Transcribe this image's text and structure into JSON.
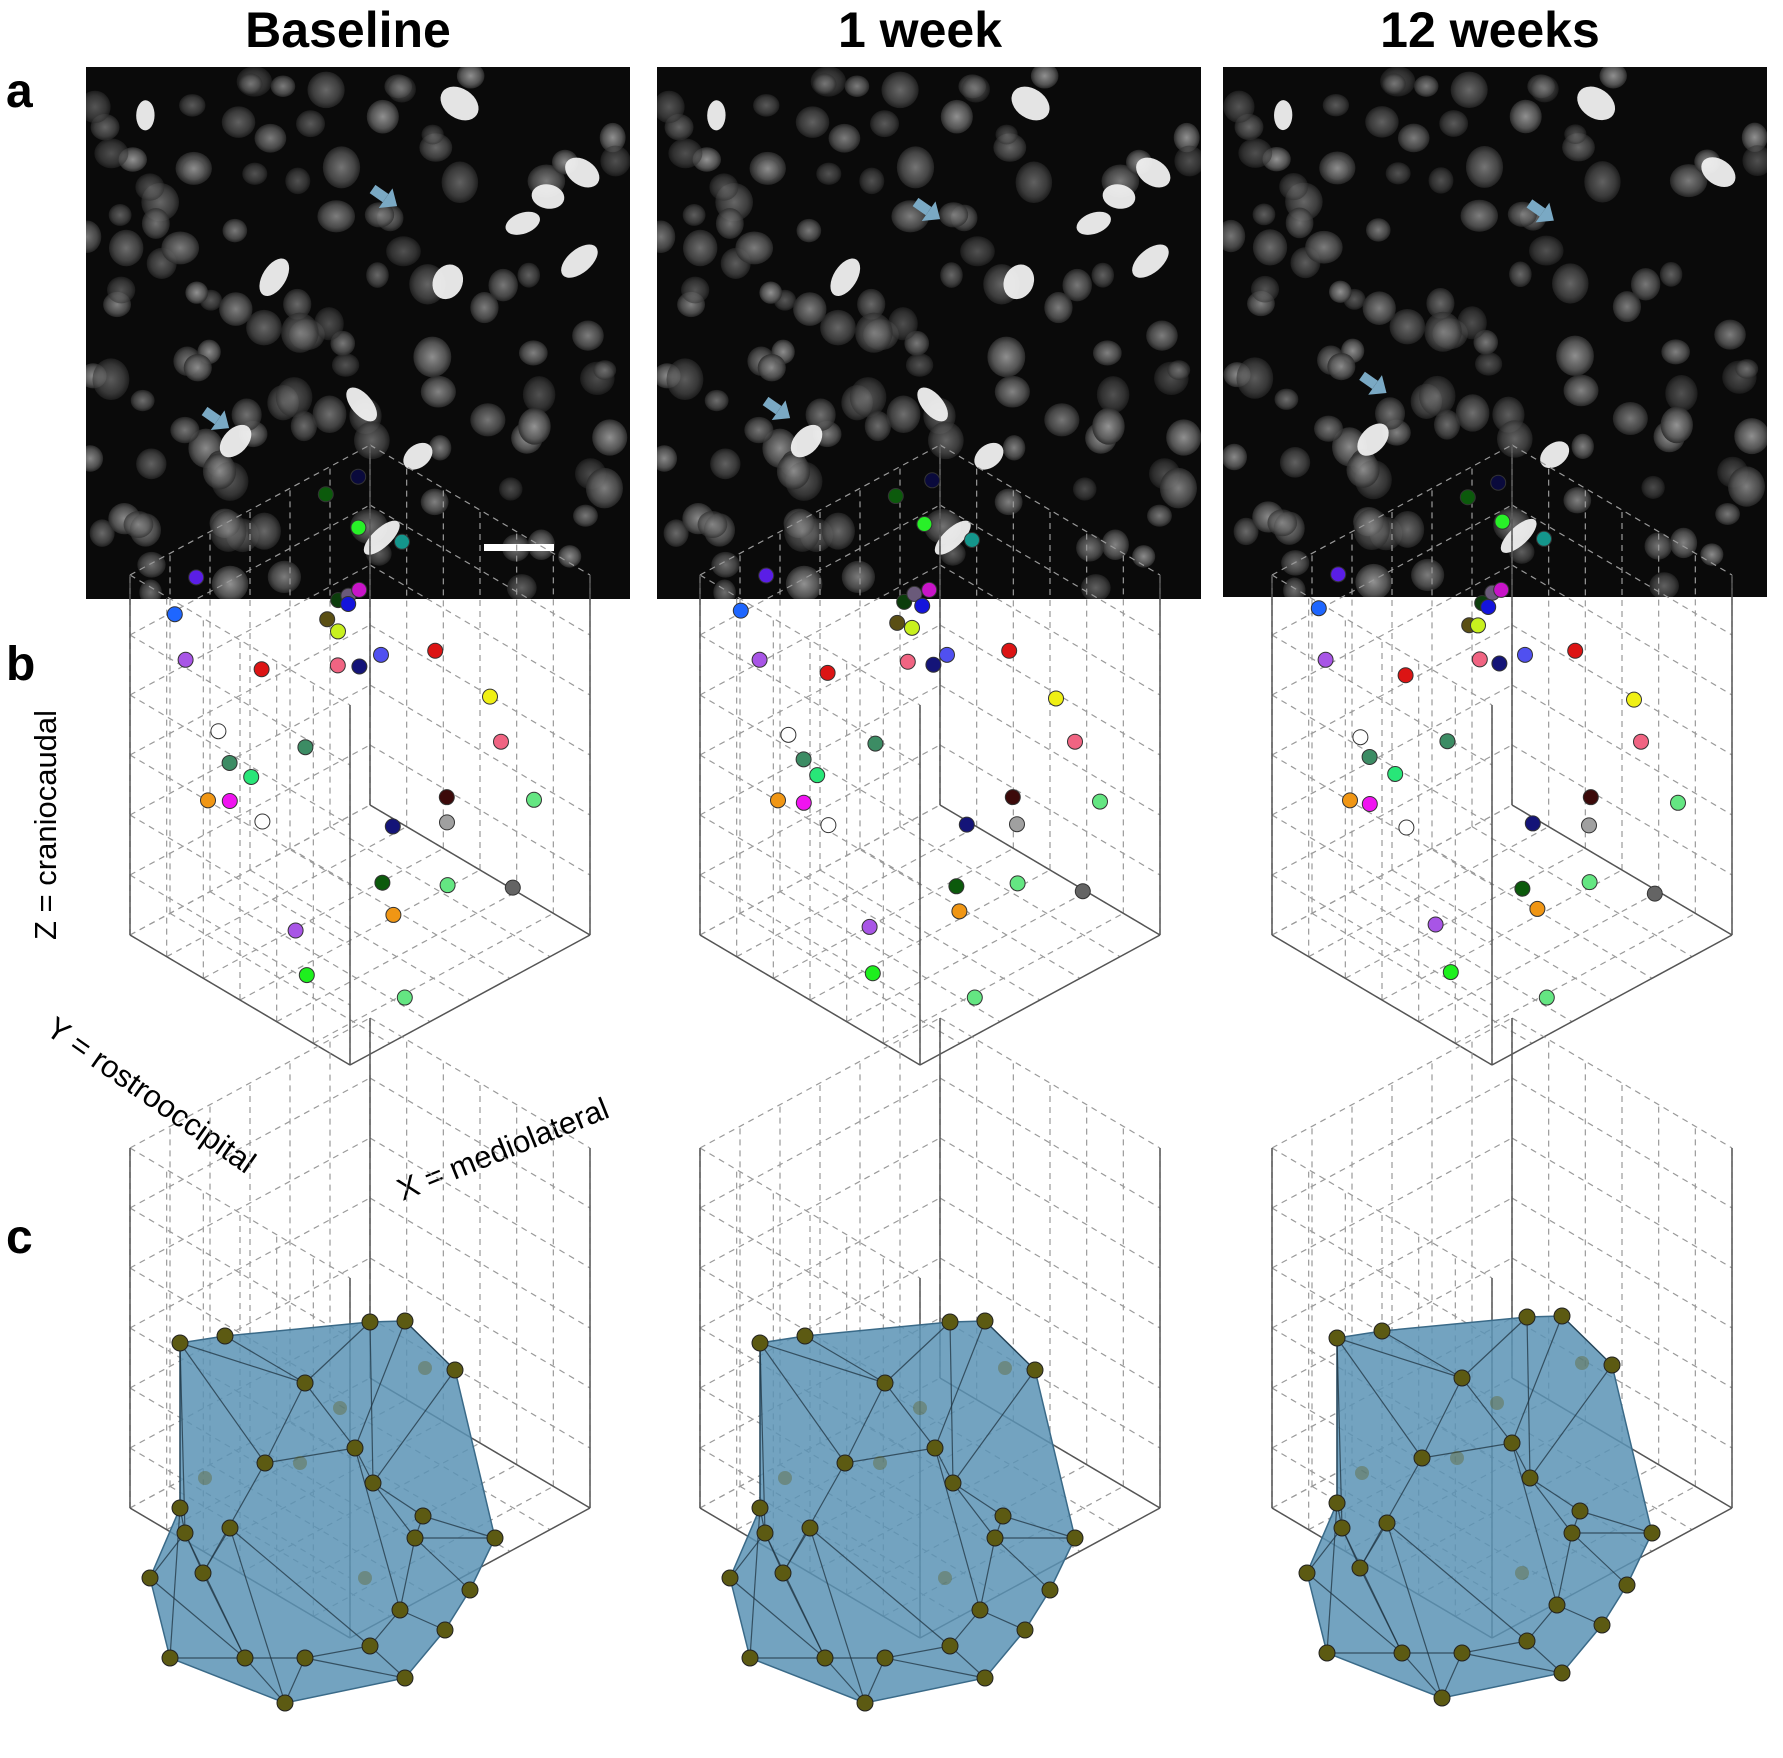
{
  "columns": [
    {
      "title": "Baseline"
    },
    {
      "title": "1 week"
    },
    {
      "title": "12 weeks"
    }
  ],
  "panels": {
    "a": "a",
    "b": "b",
    "c": "c"
  },
  "axes": {
    "z": "Z = craniocaudal",
    "y": "Y = rostrooccipital",
    "x": "X = mediolateral"
  },
  "colors": {
    "arrow": "#7aa9c4",
    "hull_fill": "#5b93b5",
    "vertex": "#5c5a12"
  },
  "icons": {
    "arrow": "arrow-icon",
    "scale_bar": "scale-bar"
  },
  "chart_data": [
    {
      "type": "scatter",
      "panel": "b",
      "title": "",
      "xlabel": "X = mediolateral",
      "ylabel": "Y = rostrooccipital",
      "zlabel": "Z = craniocaudal",
      "grid": true,
      "series": [
        {
          "values": [
            {
              "x": 0.05,
              "y": 0.1,
              "z": 0.9,
              "c": "#1e66ff"
            },
            {
              "x": 0.2,
              "y": 0.05,
              "z": 0.95,
              "c": "#5a1ee6"
            },
            {
              "x": 0.1,
              "y": 0.1,
              "z": 0.7,
              "c": "#a855e6"
            },
            {
              "x": 0.45,
              "y": 0.45,
              "z": 0.95,
              "c": "#0c3d0c"
            },
            {
              "x": 0.45,
              "y": 0.4,
              "z": 0.85,
              "c": "#5a4f14"
            },
            {
              "x": 0.5,
              "y": 0.4,
              "z": 0.78,
              "c": "#c8f01e"
            },
            {
              "x": 0.65,
              "y": 0.3,
              "z": 0.8,
              "c": "#6a5a7a"
            },
            {
              "x": 0.7,
              "y": 0.3,
              "z": 0.8,
              "c": "#c814c8"
            },
            {
              "x": 0.7,
              "y": 0.25,
              "z": 0.72,
              "c": "#1414dc"
            },
            {
              "x": 0.35,
              "y": 0.2,
              "z": 0.6,
              "c": "#dc1414"
            },
            {
              "x": 0.55,
              "y": 0.35,
              "z": 0.6,
              "c": "#f06482"
            },
            {
              "x": 0.65,
              "y": 0.35,
              "z": 0.55,
              "c": "#141478"
            },
            {
              "x": 0.75,
              "y": 0.35,
              "z": 0.55,
              "c": "#5050f0"
            },
            {
              "x": 0.8,
              "y": 0.05,
              "z": 1.0,
              "c": "#0c5a0c"
            },
            {
              "x": 0.95,
              "y": 0.05,
              "z": 1.0,
              "c": "#0a0a3c"
            },
            {
              "x": 0.9,
              "y": 0.1,
              "z": 0.85,
              "c": "#28f028"
            },
            {
              "x": 1.0,
              "y": 0.2,
              "z": 0.8,
              "c": "#14968c"
            },
            {
              "x": 0.95,
              "y": 0.4,
              "z": 0.5,
              "c": "#dc1414"
            },
            {
              "x": 1.0,
              "y": 0.6,
              "z": 0.4,
              "c": "#f0f014"
            },
            {
              "x": 0.15,
              "y": 0.2,
              "z": 0.45,
              "c": "#ffffff"
            },
            {
              "x": 0.1,
              "y": 0.3,
              "z": 0.4,
              "c": "#3c8c64"
            },
            {
              "x": 0.2,
              "y": 0.3,
              "z": 0.3,
              "c": "#28e678"
            },
            {
              "x": 0.0,
              "y": 0.3,
              "z": 0.3,
              "c": "#f09614"
            },
            {
              "x": 0.05,
              "y": 0.35,
              "z": 0.3,
              "c": "#f014f0"
            },
            {
              "x": 0.15,
              "y": 0.4,
              "z": 0.2,
              "c": "#ffffff"
            },
            {
              "x": 0.4,
              "y": 0.35,
              "z": 0.35,
              "c": "#3c8c64"
            },
            {
              "x": 0.55,
              "y": 0.6,
              "z": 0.1,
              "c": "#141478"
            },
            {
              "x": 0.8,
              "y": 0.6,
              "z": 0.1,
              "c": "#3c0a0a"
            },
            {
              "x": 0.75,
              "y": 0.65,
              "z": 0.05,
              "c": "#a0a0a0"
            },
            {
              "x": 0.4,
              "y": 0.7,
              "z": 0.0,
              "c": "#0c5a0c"
            },
            {
              "x": 0.4,
              "y": 0.75,
              "z": -0.1,
              "c": "#f09614"
            },
            {
              "x": 0.6,
              "y": 0.8,
              "z": -0.05,
              "c": "#64e682"
            },
            {
              "x": 1.0,
              "y": 0.65,
              "z": 0.25,
              "c": "#f06482"
            },
            {
              "x": 1.0,
              "y": 0.8,
              "z": 0.1,
              "c": "#64e682"
            },
            {
              "x": 0.8,
              "y": 0.9,
              "z": -0.1,
              "c": "#646464"
            },
            {
              "x": 0.1,
              "y": 0.6,
              "z": -0.1,
              "c": "#a855e6"
            },
            {
              "x": 0.05,
              "y": 0.7,
              "z": -0.2,
              "c": "#1ef01e"
            },
            {
              "x": 0.3,
              "y": 0.9,
              "z": -0.3,
              "c": "#64e682"
            }
          ]
        }
      ]
    },
    {
      "type": "scatter",
      "panel": "c",
      "title": "",
      "grid": true,
      "series": []
    }
  ]
}
